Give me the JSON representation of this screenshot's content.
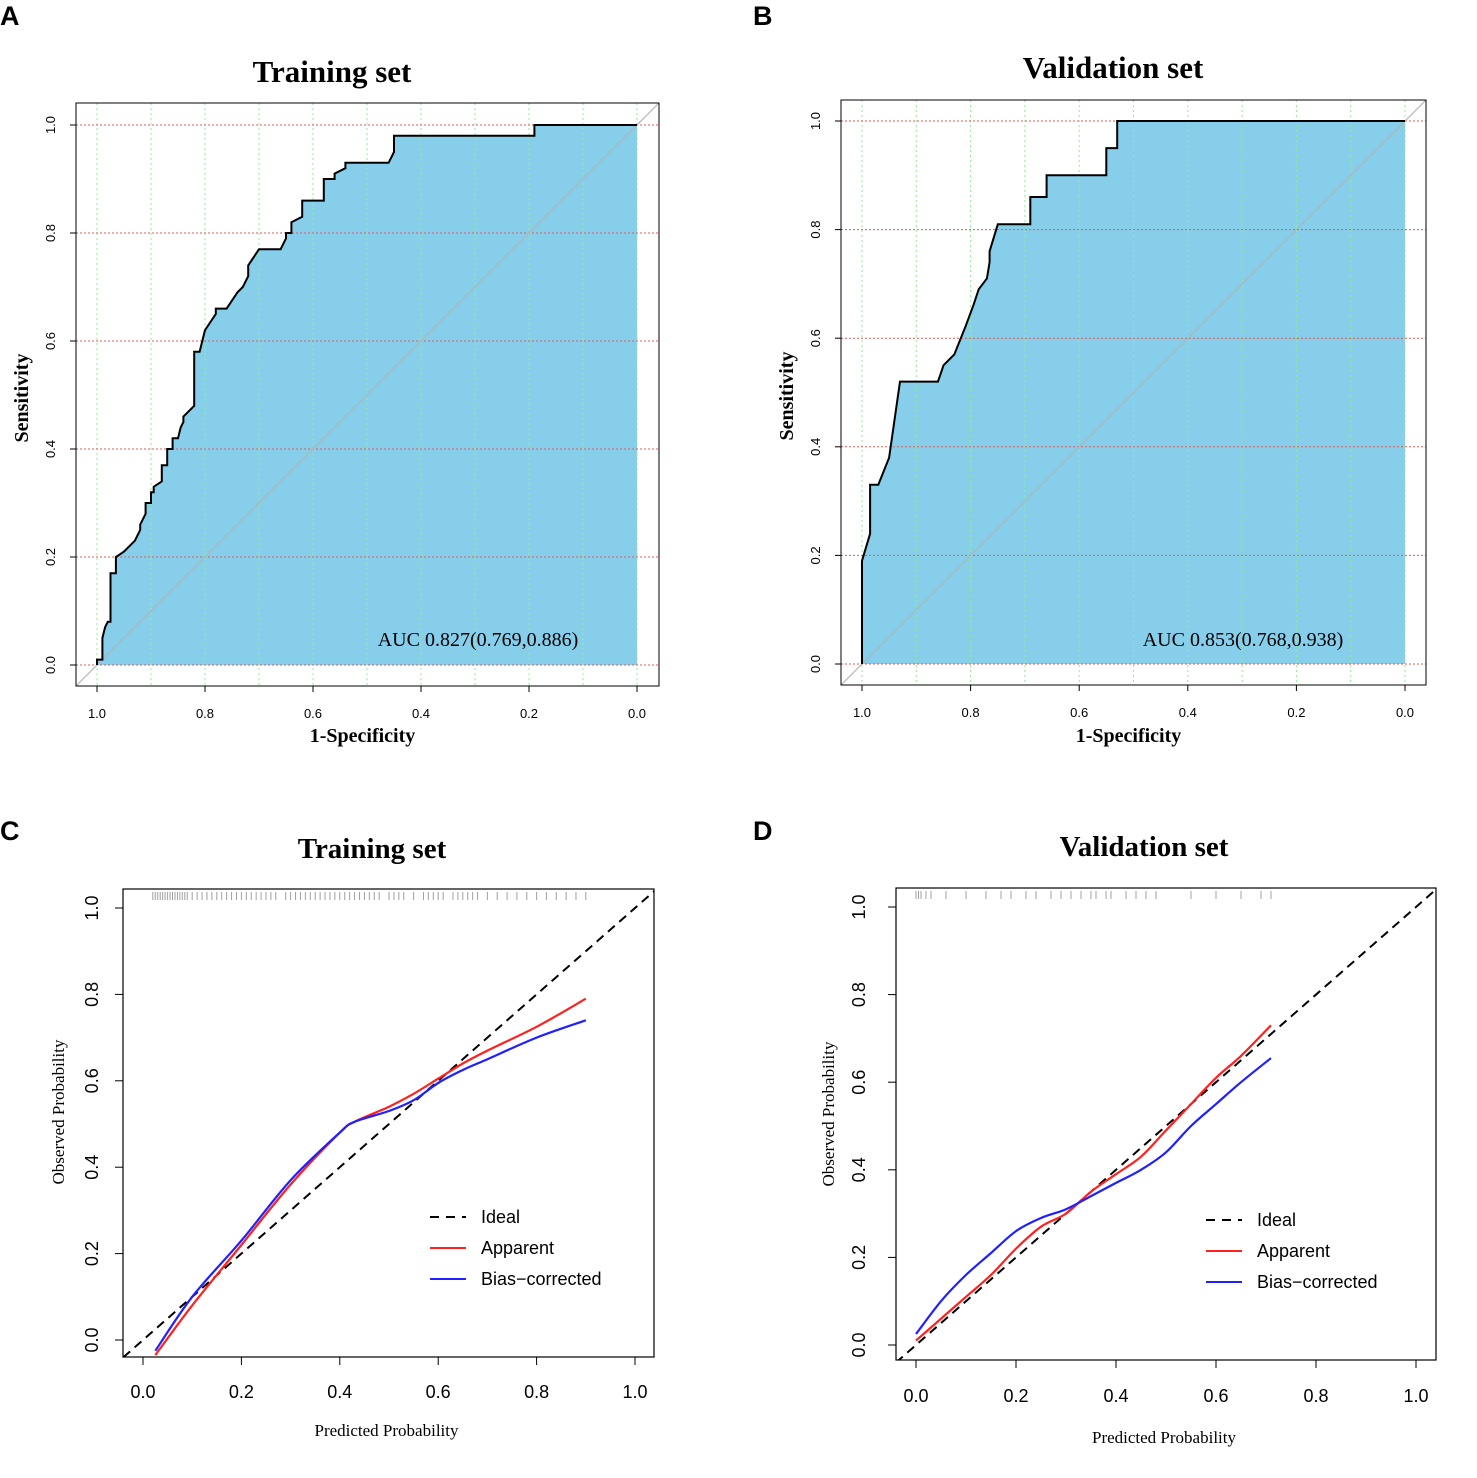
{
  "figure": {
    "panel_labels": [
      "A",
      "B",
      "C",
      "D"
    ],
    "colors": {
      "roc_fill": "#87ceeb",
      "roc_curve": "#000000",
      "vgrid": "#90ee90",
      "hgrid": "#e05a5a",
      "diagonal": "#b4b4b4",
      "apparent": "#ff2020",
      "bias_corrected": "#2020ff",
      "ideal": "#000000",
      "rug": "#a0a0a0"
    }
  },
  "chart_data": [
    {
      "type": "line",
      "kind": "roc",
      "panel": "A",
      "title": "Training set",
      "xlabel": "1-Specificity",
      "ylabel": "Sensitivity",
      "xlim": [
        1.0,
        0.0
      ],
      "ylim": [
        0.0,
        1.0
      ],
      "x_ticks": [
        "1.0",
        "0.8",
        "0.6",
        "0.4",
        "0.2",
        "0.0"
      ],
      "y_ticks": [
        "0.0",
        "0.2",
        "0.4",
        "0.6",
        "0.8",
        "1.0"
      ],
      "annotation": "AUC 0.827(0.769,0.886)",
      "grid": true,
      "x": [
        1.0,
        1.0,
        0.99,
        0.99,
        0.985,
        0.98,
        0.975,
        0.975,
        0.965,
        0.965,
        0.95,
        0.94,
        0.93,
        0.92,
        0.92,
        0.91,
        0.91,
        0.9,
        0.9,
        0.895,
        0.895,
        0.88,
        0.88,
        0.87,
        0.87,
        0.86,
        0.86,
        0.85,
        0.845,
        0.84,
        0.84,
        0.82,
        0.82,
        0.81,
        0.8,
        0.78,
        0.78,
        0.76,
        0.74,
        0.73,
        0.72,
        0.72,
        0.7,
        0.66,
        0.65,
        0.65,
        0.64,
        0.64,
        0.62,
        0.62,
        0.58,
        0.58,
        0.56,
        0.56,
        0.54,
        0.54,
        0.46,
        0.45,
        0.45,
        0.19,
        0.19,
        0.0
      ],
      "y": [
        0.0,
        0.01,
        0.01,
        0.05,
        0.07,
        0.08,
        0.08,
        0.17,
        0.17,
        0.2,
        0.21,
        0.22,
        0.23,
        0.25,
        0.26,
        0.28,
        0.3,
        0.3,
        0.32,
        0.32,
        0.33,
        0.34,
        0.37,
        0.37,
        0.4,
        0.4,
        0.42,
        0.42,
        0.44,
        0.45,
        0.46,
        0.48,
        0.58,
        0.58,
        0.62,
        0.65,
        0.66,
        0.66,
        0.69,
        0.7,
        0.72,
        0.74,
        0.77,
        0.77,
        0.79,
        0.8,
        0.8,
        0.82,
        0.83,
        0.86,
        0.86,
        0.9,
        0.9,
        0.91,
        0.92,
        0.93,
        0.93,
        0.95,
        0.98,
        0.98,
        1.0,
        1.0
      ]
    },
    {
      "type": "line",
      "kind": "roc",
      "panel": "B",
      "title": "Validation set",
      "xlabel": "1-Specificity",
      "ylabel": "Sensitivity",
      "xlim": [
        1.0,
        0.0
      ],
      "ylim": [
        0.0,
        1.0
      ],
      "x_ticks": [
        "1.0",
        "0.8",
        "0.6",
        "0.4",
        "0.2",
        "0.0"
      ],
      "y_ticks": [
        "0.0",
        "0.2",
        "0.4",
        "0.6",
        "0.8",
        "1.0"
      ],
      "annotation": "AUC 0.853(0.768,0.938)",
      "grid": true,
      "x": [
        1.0,
        1.0,
        0.985,
        0.985,
        0.97,
        0.95,
        0.95,
        0.93,
        0.93,
        0.86,
        0.85,
        0.83,
        0.83,
        0.81,
        0.81,
        0.795,
        0.785,
        0.77,
        0.765,
        0.765,
        0.75,
        0.69,
        0.69,
        0.66,
        0.66,
        0.55,
        0.55,
        0.53,
        0.53,
        0.0
      ],
      "y": [
        0.0,
        0.19,
        0.24,
        0.33,
        0.33,
        0.38,
        0.38,
        0.52,
        0.52,
        0.52,
        0.55,
        0.57,
        0.57,
        0.62,
        0.62,
        0.66,
        0.69,
        0.71,
        0.74,
        0.76,
        0.81,
        0.81,
        0.86,
        0.86,
        0.9,
        0.9,
        0.95,
        0.95,
        1.0,
        1.0
      ]
    },
    {
      "type": "line",
      "kind": "calibration",
      "panel": "C",
      "title": "Training set",
      "xlabel": "Predicted Probability",
      "ylabel": "Observed Probability",
      "xlim": [
        -0.04,
        1.04
      ],
      "ylim": [
        -0.04,
        1.04
      ],
      "x_ticks": [
        "0.0",
        "0.2",
        "0.4",
        "0.6",
        "0.8",
        "1.0"
      ],
      "y_ticks": [
        "0.0",
        "0.2",
        "0.4",
        "0.6",
        "0.8",
        "1.0"
      ],
      "legend": [
        "Ideal",
        "Apparent",
        "Bias−corrected"
      ],
      "legend_position": "bottom-right",
      "rug": [
        0.02,
        0.025,
        0.03,
        0.035,
        0.04,
        0.045,
        0.05,
        0.055,
        0.06,
        0.065,
        0.07,
        0.075,
        0.08,
        0.085,
        0.09,
        0.1,
        0.11,
        0.12,
        0.13,
        0.14,
        0.15,
        0.16,
        0.17,
        0.18,
        0.19,
        0.2,
        0.21,
        0.22,
        0.23,
        0.24,
        0.25,
        0.26,
        0.27,
        0.29,
        0.3,
        0.31,
        0.32,
        0.33,
        0.34,
        0.35,
        0.36,
        0.37,
        0.38,
        0.39,
        0.4,
        0.41,
        0.42,
        0.43,
        0.44,
        0.45,
        0.46,
        0.47,
        0.48,
        0.5,
        0.51,
        0.52,
        0.53,
        0.55,
        0.57,
        0.58,
        0.59,
        0.6,
        0.61,
        0.63,
        0.64,
        0.65,
        0.66,
        0.67,
        0.68,
        0.7,
        0.72,
        0.74,
        0.76,
        0.78,
        0.8,
        0.82,
        0.84,
        0.86,
        0.88,
        0.9
      ],
      "series": [
        {
          "name": "Ideal",
          "x": [
            -0.04,
            1.04
          ],
          "y": [
            -0.04,
            1.04
          ]
        },
        {
          "name": "Apparent",
          "x": [
            0.025,
            0.1,
            0.2,
            0.3,
            0.4,
            0.43,
            0.5,
            0.55,
            0.6,
            0.65,
            0.7,
            0.8,
            0.9
          ],
          "y": [
            -0.035,
            0.08,
            0.22,
            0.36,
            0.48,
            0.505,
            0.54,
            0.57,
            0.605,
            0.64,
            0.67,
            0.725,
            0.79
          ]
        },
        {
          "name": "Bias−corrected",
          "x": [
            0.025,
            0.1,
            0.2,
            0.3,
            0.4,
            0.43,
            0.5,
            0.55,
            0.6,
            0.65,
            0.7,
            0.8,
            0.9
          ],
          "y": [
            -0.025,
            0.1,
            0.23,
            0.37,
            0.48,
            0.505,
            0.53,
            0.555,
            0.595,
            0.625,
            0.65,
            0.7,
            0.74
          ]
        }
      ]
    },
    {
      "type": "line",
      "kind": "calibration",
      "panel": "D",
      "title": "Validation set",
      "xlabel": "Predicted Probability",
      "ylabel": "Observed Probability",
      "xlim": [
        -0.04,
        1.04
      ],
      "ylim": [
        -0.04,
        1.04
      ],
      "x_ticks": [
        "0.0",
        "0.2",
        "0.4",
        "0.6",
        "0.8",
        "1.0"
      ],
      "y_ticks": [
        "0.0",
        "0.2",
        "0.4",
        "0.6",
        "0.8",
        "1.0"
      ],
      "legend": [
        "Ideal",
        "Apparent",
        "Bias−corrected"
      ],
      "legend_position": "bottom-right",
      "rug": [
        0.0,
        0.005,
        0.01,
        0.02,
        0.03,
        0.06,
        0.1,
        0.14,
        0.17,
        0.19,
        0.22,
        0.24,
        0.27,
        0.29,
        0.31,
        0.33,
        0.35,
        0.36,
        0.38,
        0.39,
        0.42,
        0.44,
        0.46,
        0.48,
        0.55,
        0.6,
        0.65,
        0.69,
        0.71
      ],
      "series": [
        {
          "name": "Ideal",
          "x": [
            -0.04,
            1.04
          ],
          "y": [
            -0.04,
            1.04
          ]
        },
        {
          "name": "Apparent",
          "x": [
            0.0,
            0.05,
            0.1,
            0.15,
            0.2,
            0.25,
            0.3,
            0.35,
            0.4,
            0.45,
            0.5,
            0.55,
            0.6,
            0.65,
            0.71
          ],
          "y": [
            0.01,
            0.06,
            0.11,
            0.16,
            0.22,
            0.27,
            0.3,
            0.35,
            0.39,
            0.43,
            0.49,
            0.55,
            0.61,
            0.66,
            0.73
          ]
        },
        {
          "name": "Bias−corrected",
          "x": [
            0.0,
            0.05,
            0.1,
            0.15,
            0.2,
            0.25,
            0.3,
            0.35,
            0.4,
            0.45,
            0.5,
            0.55,
            0.6,
            0.65,
            0.71
          ],
          "y": [
            0.025,
            0.1,
            0.16,
            0.21,
            0.26,
            0.29,
            0.31,
            0.34,
            0.37,
            0.4,
            0.44,
            0.5,
            0.55,
            0.6,
            0.655
          ]
        }
      ]
    }
  ]
}
